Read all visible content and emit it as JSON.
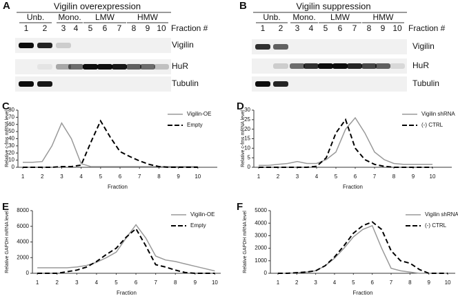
{
  "blots": [
    {
      "panel": "A",
      "title": "Vigilin overexpression",
      "groups": [
        "Unb.",
        "Mono.",
        "LMW",
        "HMW"
      ],
      "lanes": [
        1,
        2,
        3,
        4,
        5,
        6,
        7,
        8,
        9,
        10
      ],
      "fraction_label": "Fraction #",
      "rows": [
        "Vigilin",
        "HuR",
        "Tubulin"
      ]
    },
    {
      "panel": "B",
      "title": "Vigilin suppression",
      "groups": [
        "Unb.",
        "Mono.",
        "LMW",
        "HMW"
      ],
      "lanes": [
        1,
        2,
        3,
        4,
        5,
        6,
        7,
        8,
        9,
        10
      ],
      "fraction_label": "Fraction #",
      "rows": [
        "Vigilin",
        "HuR",
        "Tubulin"
      ]
    }
  ],
  "chart_data": [
    {
      "type": "line",
      "panel": "C",
      "xlabel": "Fraction",
      "ylabel": "Relative c-fms mRNA level",
      "x": [
        1,
        1.5,
        2,
        2.5,
        3,
        3.5,
        4,
        4.5,
        5,
        5.5,
        6,
        6.5,
        7,
        7.5,
        8,
        8.5,
        9,
        9.5,
        10
      ],
      "xlim": [
        0.75,
        11
      ],
      "xticks": [
        1,
        2,
        3,
        4,
        5,
        6,
        7,
        8,
        9,
        10
      ],
      "ylim": [
        0,
        80
      ],
      "yticks": [
        0,
        10,
        20,
        30,
        40,
        50,
        60,
        70,
        80
      ],
      "legend": "upper right",
      "series": [
        {
          "name": "Vigilin-OE",
          "color": "#999999",
          "dashed": false,
          "values": [
            7,
            7,
            8,
            30,
            62,
            40,
            5,
            1,
            1,
            1,
            1,
            1,
            1,
            1,
            1,
            1,
            1,
            1,
            1
          ]
        },
        {
          "name": "Empty",
          "color": "#000000",
          "dashed": true,
          "values": [
            0,
            0,
            0,
            0,
            1,
            1,
            3,
            35,
            65,
            42,
            22,
            15,
            9,
            4,
            1,
            0,
            0,
            0,
            0
          ]
        }
      ]
    },
    {
      "type": "line",
      "panel": "D",
      "xlabel": "Fraction",
      "ylabel": "Relative c-fms mRNA level",
      "x": [
        1,
        1.5,
        2,
        2.5,
        3,
        3.5,
        4,
        4.5,
        5,
        5.5,
        6,
        6.5,
        7,
        7.5,
        8,
        8.5,
        9,
        9.5,
        10
      ],
      "xlim": [
        0.75,
        11
      ],
      "xticks": [
        1,
        2,
        3,
        4,
        5,
        6,
        7,
        8,
        9,
        10
      ],
      "ylim": [
        0,
        30
      ],
      "yticks": [
        0,
        5,
        10,
        15,
        20,
        25,
        30
      ],
      "legend": "upper right",
      "series": [
        {
          "name": "Vigilin shRNA",
          "color": "#999999",
          "dashed": false,
          "values": [
            1,
            1,
            1.5,
            2,
            3,
            2,
            2,
            4,
            8,
            20,
            26,
            18,
            8,
            4,
            2,
            1.5,
            1.5,
            1.5,
            1.5
          ]
        },
        {
          "name": "(-) CTRL",
          "color": "#000000",
          "dashed": true,
          "values": [
            0,
            0,
            0,
            0,
            0,
            0,
            0.5,
            5,
            18,
            25,
            10,
            4,
            1.5,
            0.5,
            0,
            0,
            0,
            0,
            0
          ]
        }
      ]
    },
    {
      "type": "line",
      "panel": "E",
      "xlabel": "Fraction",
      "ylabel": "Relative GAPDH mRNA level",
      "x": [
        1,
        1.5,
        2,
        2.5,
        3,
        3.5,
        4,
        4.5,
        5,
        5.5,
        6,
        6.5,
        7,
        7.5,
        8,
        8.5,
        9,
        9.5,
        10
      ],
      "xlim": [
        0.75,
        10.3
      ],
      "xticks": [
        1,
        2,
        3,
        4,
        5,
        6,
        7,
        8,
        9,
        10
      ],
      "ylim": [
        0,
        8000
      ],
      "yticks": [
        0,
        2000,
        4000,
        6000,
        8000
      ],
      "legend": "upper right",
      "series": [
        {
          "name": "Vigilin-OE",
          "color": "#999999",
          "dashed": false,
          "values": [
            700,
            700,
            700,
            700,
            800,
            1000,
            1400,
            2000,
            2700,
            4500,
            6200,
            4500,
            2200,
            1700,
            1500,
            1200,
            900,
            600,
            300
          ]
        },
        {
          "name": "Empty",
          "color": "#000000",
          "dashed": true,
          "values": [
            0,
            0,
            0,
            200,
            400,
            800,
            1500,
            2400,
            3200,
            4600,
            5700,
            3500,
            1100,
            800,
            400,
            100,
            0,
            0,
            0
          ]
        }
      ]
    },
    {
      "type": "line",
      "panel": "F",
      "xlabel": "Fraction",
      "ylabel": "Relative GAPDH mRNA level",
      "x": [
        1,
        1.5,
        2,
        2.5,
        3,
        3.5,
        4,
        4.5,
        5,
        5.5,
        6,
        6.5,
        7,
        7.5,
        8,
        8.5,
        9,
        9.5,
        10
      ],
      "xlim": [
        0.6,
        10.4
      ],
      "xticks": [
        1,
        2,
        3,
        4,
        5,
        6,
        7,
        8,
        9,
        10
      ],
      "ylim": [
        0,
        5000
      ],
      "yticks": [
        0,
        1000,
        2000,
        3000,
        4000,
        5000
      ],
      "legend": "upper right",
      "series": [
        {
          "name": "Vigilin shRNA",
          "color": "#999999",
          "dashed": false,
          "values": [
            0,
            0,
            50,
            100,
            200,
            600,
            1200,
            2000,
            2900,
            3500,
            3800,
            2000,
            400,
            200,
            100,
            0,
            0,
            0,
            0
          ]
        },
        {
          "name": "(-) CTRL",
          "color": "#000000",
          "dashed": true,
          "values": [
            0,
            0,
            50,
            100,
            200,
            600,
            1300,
            2200,
            3200,
            3800,
            4100,
            3500,
            1800,
            1000,
            800,
            300,
            0,
            0,
            0
          ]
        }
      ]
    }
  ]
}
